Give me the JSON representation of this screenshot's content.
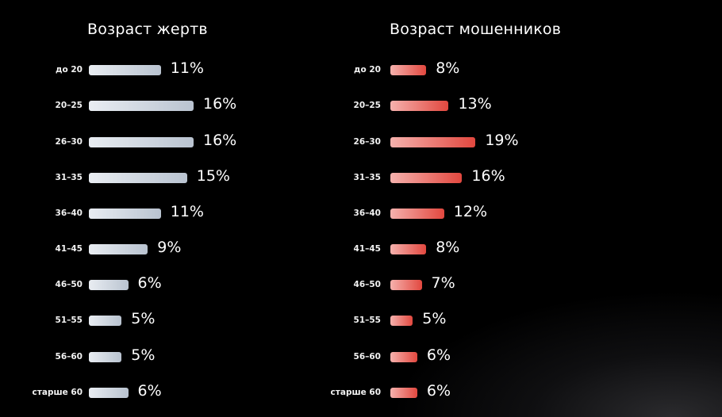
{
  "chart_data": [
    {
      "type": "bar",
      "orientation": "horizontal",
      "title": "Возраст жертв",
      "categories": [
        "до 20",
        "20–25",
        "26–30",
        "31–35",
        "36–40",
        "41–45",
        "46–50",
        "51–55",
        "56–60",
        "старше 60"
      ],
      "values": [
        11,
        16,
        16,
        15,
        11,
        9,
        6,
        5,
        5,
        6
      ],
      "value_labels": [
        "11%",
        "16%",
        "16%",
        "15%",
        "11%",
        "9%",
        "6%",
        "5%",
        "5%",
        "6%"
      ],
      "unit": "%",
      "bar_color_start": "#e9edf2",
      "bar_color_end": "#b9c3d0",
      "grid": false
    },
    {
      "type": "bar",
      "orientation": "horizontal",
      "title": "Возраст мошенников",
      "categories": [
        "до 20",
        "20–25",
        "26–30",
        "31–35",
        "36–40",
        "41–45",
        "46–50",
        "51–55",
        "56–60",
        "старше 60"
      ],
      "values": [
        8,
        13,
        19,
        16,
        12,
        8,
        7,
        5,
        6,
        6
      ],
      "value_labels": [
        "8%",
        "13%",
        "19%",
        "16%",
        "12%",
        "8%",
        "7%",
        "5%",
        "6%",
        "6%"
      ],
      "unit": "%",
      "bar_color_start": "#f5b1ad",
      "bar_color_end": "#e2483f",
      "grid": false
    }
  ],
  "colors": {
    "background": "#000000",
    "text": "#ffffff"
  }
}
